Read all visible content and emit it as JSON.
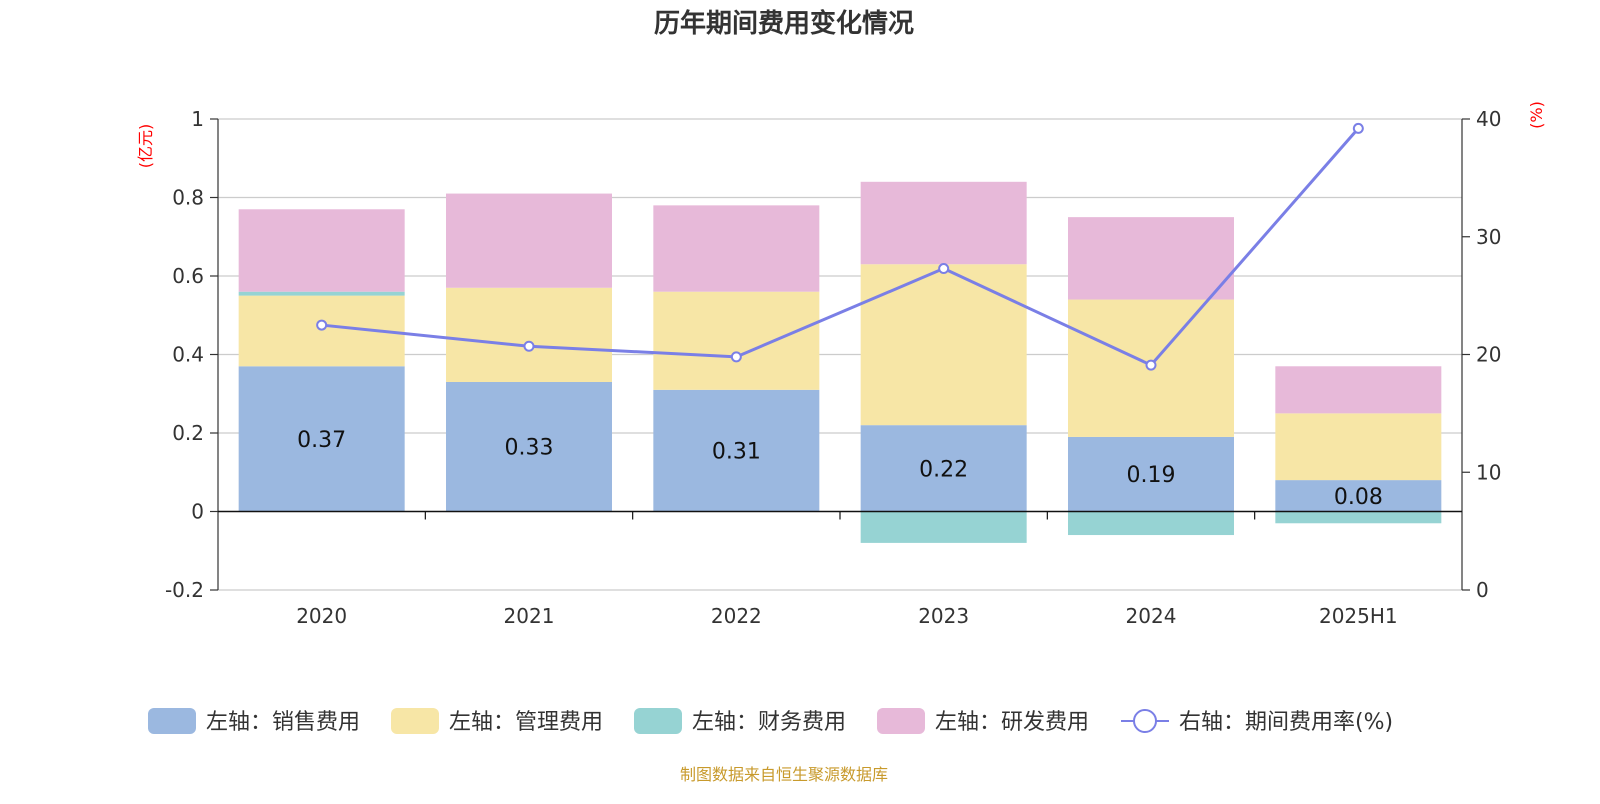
{
  "chart_data": {
    "type": "bar",
    "title": "历年期间费用变化情况",
    "categories": [
      "2020",
      "2021",
      "2022",
      "2023",
      "2024",
      "2025H1"
    ],
    "left_axis": {
      "unit": "(亿元)",
      "ylim": [
        -0.2,
        1
      ],
      "ticks": [
        "1",
        "0.8",
        "0.6",
        "0.4",
        "0.2",
        "0",
        "-0.2"
      ],
      "tick_values": [
        1,
        0.8,
        0.6,
        0.4,
        0.2,
        0,
        -0.2
      ]
    },
    "right_axis": {
      "unit": "(%)",
      "ylim": [
        0,
        40
      ],
      "ticks": [
        "40",
        "30",
        "20",
        "10",
        "0"
      ],
      "tick_values": [
        40,
        30,
        20,
        10,
        0
      ]
    },
    "stacked": true,
    "grid": true,
    "legend_position": "bottom",
    "series": [
      {
        "name": "左轴：销售费用",
        "axis": "left",
        "color": "#9bb8e0",
        "values": [
          0.37,
          0.33,
          0.31,
          0.22,
          0.19,
          0.08
        ],
        "labels": [
          "0.37",
          "0.33",
          "0.31",
          "0.22",
          "0.19",
          "0.08"
        ]
      },
      {
        "name": "左轴：管理费用",
        "axis": "left",
        "color": "#f7e6a6",
        "values": [
          0.18,
          0.24,
          0.25,
          0.41,
          0.35,
          0.17
        ]
      },
      {
        "name": "左轴：财务费用",
        "axis": "left",
        "color": "#96d3d3",
        "values": [
          0.01,
          0.0,
          0.0,
          -0.08,
          -0.06,
          -0.03
        ]
      },
      {
        "name": "左轴：研发费用",
        "axis": "left",
        "color": "#e7b9d9",
        "values": [
          0.21,
          0.24,
          0.22,
          0.21,
          0.21,
          0.12
        ]
      },
      {
        "name": "右轴：期间费用率(%)",
        "axis": "right",
        "type": "line",
        "color": "#7a7fe6",
        "values": [
          22.5,
          20.7,
          19.8,
          27.3,
          19.1,
          39.2
        ]
      }
    ],
    "source": "制图数据来自恒生聚源数据库"
  }
}
